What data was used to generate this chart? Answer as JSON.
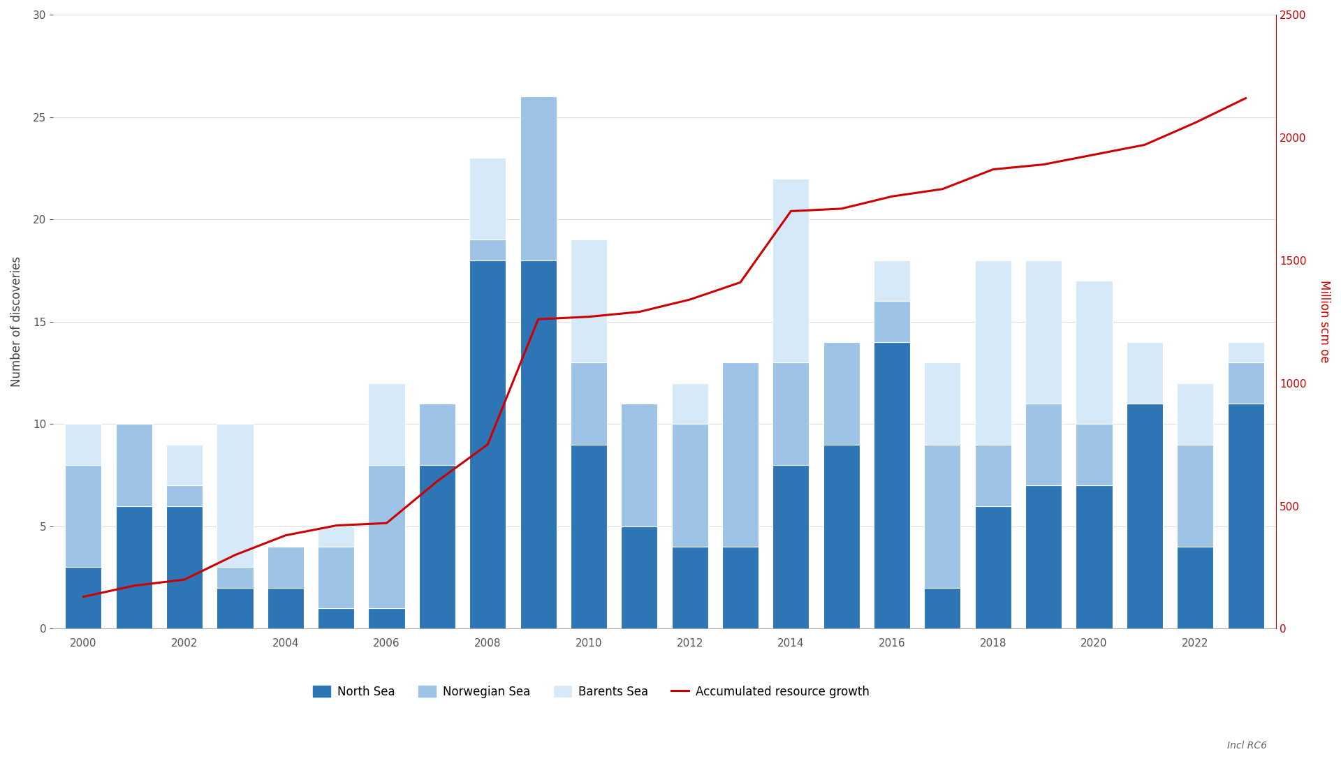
{
  "years": [
    2000,
    2001,
    2002,
    2003,
    2004,
    2005,
    2006,
    2007,
    2008,
    2009,
    2010,
    2011,
    2012,
    2013,
    2014,
    2015,
    2016,
    2017,
    2018,
    2019,
    2020,
    2021,
    2022,
    2023
  ],
  "north_sea": [
    3,
    6,
    6,
    2,
    2,
    1,
    1,
    8,
    18,
    18,
    9,
    5,
    4,
    4,
    8,
    9,
    14,
    2,
    6,
    7,
    7,
    11,
    4,
    11
  ],
  "norwegian_sea": [
    5,
    4,
    1,
    1,
    2,
    3,
    7,
    3,
    1,
    8,
    4,
    6,
    6,
    9,
    5,
    5,
    2,
    7,
    3,
    4,
    3,
    0,
    5,
    2
  ],
  "barents_sea": [
    2,
    0,
    2,
    7,
    0,
    1,
    4,
    0,
    4,
    0,
    6,
    0,
    2,
    0,
    9,
    0,
    2,
    4,
    9,
    7,
    7,
    3,
    3,
    1
  ],
  "accumulated_resource_growth": [
    130,
    175,
    200,
    300,
    380,
    420,
    430,
    600,
    750,
    1260,
    1270,
    1290,
    1340,
    1410,
    1700,
    1710,
    1760,
    1790,
    1870,
    1890,
    1930,
    1970,
    2060,
    2160
  ],
  "north_sea_color": "#2e75b6",
  "norwegian_sea_color": "#9dc3e6",
  "barents_sea_color": "#d6e9f8",
  "line_color": "#cc0000",
  "bar_edge_color": "white",
  "background_color": "#ffffff",
  "ylabel_left": "Number of discoveries",
  "ylabel_right": "Million scm oe",
  "ylim_left": [
    0,
    30
  ],
  "ylim_right": [
    0,
    2500
  ],
  "yticks_left": [
    0,
    5,
    10,
    15,
    20,
    25,
    30
  ],
  "yticks_right": [
    0,
    500,
    1000,
    1500,
    2000,
    2500
  ],
  "legend_labels": [
    "North Sea",
    "Norwegian Sea",
    "Barents Sea",
    "Accumulated resource growth"
  ],
  "note": "Incl RC6",
  "axis_fontsize": 12,
  "tick_fontsize": 11,
  "legend_fontsize": 12
}
